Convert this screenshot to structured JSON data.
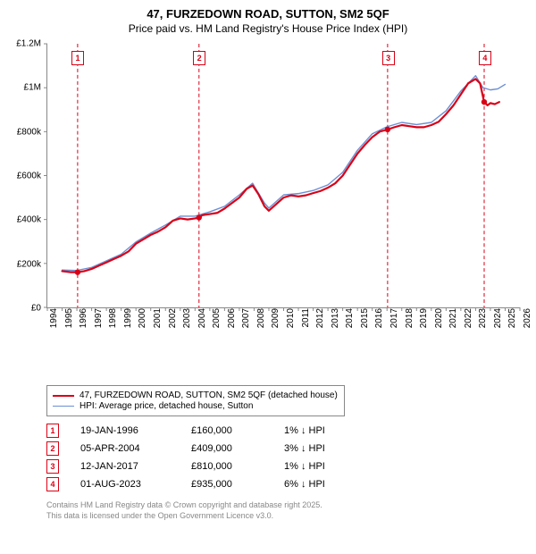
{
  "title": {
    "line1": "47, FURZEDOWN ROAD, SUTTON, SM2 5QF",
    "line2": "Price paid vs. HM Land Registry's House Price Index (HPI)",
    "fontsize_line1": 13,
    "fontsize_line2": 12
  },
  "chart": {
    "type": "line",
    "background_color": "#ffffff",
    "axis_color": "#888888",
    "x_axis": {
      "min": 1994,
      "max": 2026,
      "tick_step": 1,
      "labels": [
        "1994",
        "1995",
        "1996",
        "1997",
        "1998",
        "1999",
        "2000",
        "2001",
        "2002",
        "2003",
        "2004",
        "2005",
        "2006",
        "2007",
        "2008",
        "2009",
        "2010",
        "2011",
        "2012",
        "2013",
        "2014",
        "2015",
        "2016",
        "2017",
        "2018",
        "2019",
        "2020",
        "2021",
        "2022",
        "2023",
        "2024",
        "2025",
        "2026"
      ],
      "label_fontsize": 10
    },
    "y_axis": {
      "min": 0,
      "max": 1200000,
      "tick_step": 200000,
      "labels": [
        "£0",
        "£200k",
        "£400k",
        "£600k",
        "£800k",
        "£1M",
        "£1.2M"
      ],
      "label_fontsize": 10
    },
    "series": [
      {
        "name": "47, FURZEDOWN ROAD, SUTTON, SM2 5QF (detached house)",
        "color": "#d90016",
        "line_width": 2.2,
        "points": [
          [
            1995.0,
            165000
          ],
          [
            1995.6,
            160000
          ],
          [
            1996.05,
            160000
          ],
          [
            1996.5,
            165000
          ],
          [
            1997.0,
            175000
          ],
          [
            1997.5,
            190000
          ],
          [
            1998.0,
            205000
          ],
          [
            1998.5,
            220000
          ],
          [
            1999.0,
            235000
          ],
          [
            1999.5,
            255000
          ],
          [
            2000.0,
            290000
          ],
          [
            2000.5,
            310000
          ],
          [
            2001.0,
            330000
          ],
          [
            2001.5,
            345000
          ],
          [
            2002.0,
            365000
          ],
          [
            2002.5,
            395000
          ],
          [
            2003.0,
            405000
          ],
          [
            2003.5,
            400000
          ],
          [
            2004.0,
            405000
          ],
          [
            2004.27,
            409000
          ],
          [
            2004.5,
            420000
          ],
          [
            2005.0,
            425000
          ],
          [
            2005.5,
            430000
          ],
          [
            2006.0,
            450000
          ],
          [
            2006.5,
            475000
          ],
          [
            2007.0,
            500000
          ],
          [
            2007.5,
            540000
          ],
          [
            2007.9,
            555000
          ],
          [
            2008.3,
            515000
          ],
          [
            2008.7,
            460000
          ],
          [
            2009.0,
            440000
          ],
          [
            2009.5,
            470000
          ],
          [
            2010.0,
            500000
          ],
          [
            2010.5,
            510000
          ],
          [
            2011.0,
            505000
          ],
          [
            2011.5,
            510000
          ],
          [
            2012.0,
            520000
          ],
          [
            2012.5,
            530000
          ],
          [
            2013.0,
            545000
          ],
          [
            2013.5,
            565000
          ],
          [
            2014.0,
            600000
          ],
          [
            2014.5,
            650000
          ],
          [
            2015.0,
            700000
          ],
          [
            2015.5,
            740000
          ],
          [
            2016.0,
            775000
          ],
          [
            2016.5,
            800000
          ],
          [
            2017.04,
            810000
          ],
          [
            2017.5,
            820000
          ],
          [
            2018.0,
            830000
          ],
          [
            2018.5,
            825000
          ],
          [
            2019.0,
            820000
          ],
          [
            2019.5,
            820000
          ],
          [
            2020.0,
            830000
          ],
          [
            2020.5,
            845000
          ],
          [
            2021.0,
            880000
          ],
          [
            2021.5,
            920000
          ],
          [
            2022.0,
            970000
          ],
          [
            2022.5,
            1020000
          ],
          [
            2023.0,
            1040000
          ],
          [
            2023.3,
            1020000
          ],
          [
            2023.58,
            935000
          ],
          [
            2023.8,
            920000
          ],
          [
            2024.0,
            930000
          ],
          [
            2024.3,
            925000
          ],
          [
            2024.6,
            935000
          ]
        ]
      },
      {
        "name": "HPI: Average price, detached house, Sutton",
        "color": "#6b8fd4",
        "line_width": 1.4,
        "points": [
          [
            1995.0,
            170000
          ],
          [
            1996.0,
            168000
          ],
          [
            1997.0,
            182000
          ],
          [
            1998.0,
            212000
          ],
          [
            1999.0,
            242000
          ],
          [
            2000.0,
            298000
          ],
          [
            2001.0,
            338000
          ],
          [
            2002.0,
            375000
          ],
          [
            2003.0,
            415000
          ],
          [
            2004.0,
            415000
          ],
          [
            2005.0,
            435000
          ],
          [
            2006.0,
            460000
          ],
          [
            2007.0,
            512000
          ],
          [
            2007.9,
            565000
          ],
          [
            2008.7,
            475000
          ],
          [
            2009.0,
            452000
          ],
          [
            2010.0,
            512000
          ],
          [
            2011.0,
            518000
          ],
          [
            2012.0,
            532000
          ],
          [
            2013.0,
            558000
          ],
          [
            2014.0,
            615000
          ],
          [
            2015.0,
            715000
          ],
          [
            2016.0,
            790000
          ],
          [
            2017.0,
            822000
          ],
          [
            2018.0,
            842000
          ],
          [
            2019.0,
            832000
          ],
          [
            2020.0,
            842000
          ],
          [
            2021.0,
            895000
          ],
          [
            2022.0,
            985000
          ],
          [
            2023.0,
            1055000
          ],
          [
            2023.5,
            1000000
          ],
          [
            2024.0,
            990000
          ],
          [
            2024.5,
            995000
          ],
          [
            2025.0,
            1015000
          ]
        ]
      }
    ],
    "markers": [
      {
        "n": "1",
        "x": 1996.05,
        "color": "#d90016",
        "dash": "4,3"
      },
      {
        "n": "2",
        "x": 2004.27,
        "color": "#d90016",
        "dash": "4,3"
      },
      {
        "n": "3",
        "x": 2017.04,
        "color": "#d90016",
        "dash": "4,3"
      },
      {
        "n": "4",
        "x": 2023.58,
        "color": "#d90016",
        "dash": "4,3"
      }
    ],
    "marker_dot": {
      "color": "#d90016",
      "radius": 3.2
    }
  },
  "legend": {
    "border_color": "#888888",
    "items": [
      {
        "label": "47, FURZEDOWN ROAD, SUTTON, SM2 5QF (detached house)",
        "color": "#d90016",
        "width": 2.2
      },
      {
        "label": "HPI: Average price, detached house, Sutton",
        "color": "#6b8fd4",
        "width": 1.4
      }
    ]
  },
  "transactions": [
    {
      "n": "1",
      "date": "19-JAN-1996",
      "price": "£160,000",
      "delta": "1% ↓ HPI",
      "color": "#d90016"
    },
    {
      "n": "2",
      "date": "05-APR-2004",
      "price": "£409,000",
      "delta": "3% ↓ HPI",
      "color": "#d90016"
    },
    {
      "n": "3",
      "date": "12-JAN-2017",
      "price": "£810,000",
      "delta": "1% ↓ HPI",
      "color": "#d90016"
    },
    {
      "n": "4",
      "date": "01-AUG-2023",
      "price": "£935,000",
      "delta": "6% ↓ HPI",
      "color": "#d90016"
    }
  ],
  "footer": {
    "line1": "Contains HM Land Registry data © Crown copyright and database right 2025.",
    "line2": "This data is licensed under the Open Government Licence v3.0.",
    "color": "#888888"
  }
}
